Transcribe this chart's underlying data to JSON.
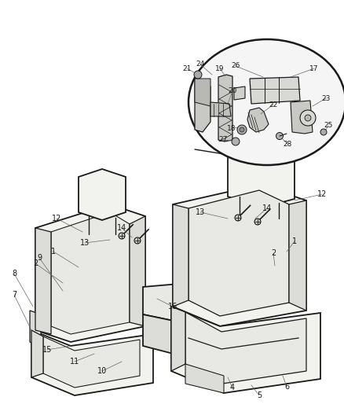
{
  "background_color": "#ffffff",
  "line_color": "#1a1a1a",
  "figsize": [
    4.38,
    5.33
  ],
  "dpi": 100,
  "seat_fill": "#f2f2ee",
  "seat_fill2": "#e8e8e4",
  "seat_fill3": "#dcdcd8",
  "oval_fill": "#f5f5f5",
  "part_fill": "#c8c8c4",
  "label_fontsize": 7.0,
  "label_color": "#1a1a1a"
}
